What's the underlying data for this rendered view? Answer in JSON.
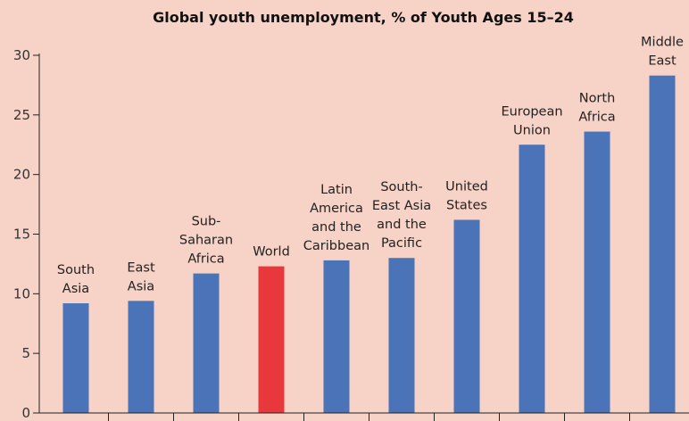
{
  "chart_data": {
    "type": "bar",
    "title": "Global youth unemployment, % of Youth Ages 15–24",
    "xlabel": "",
    "ylabel": "",
    "ylim": [
      0,
      30
    ],
    "yticks": [
      "0",
      "5",
      "10",
      "15",
      "20",
      "25",
      "30"
    ],
    "grid": false,
    "categories": [
      "South Asia",
      "East Asia",
      "Sub-Saharan Africa",
      "World",
      "Latin America and the Caribbean",
      "South-East Asia and the Pacific",
      "United States",
      "European Union",
      "North Africa",
      "Middle East"
    ],
    "label_lines": [
      [
        "South",
        "Asia"
      ],
      [
        "East",
        "Asia"
      ],
      [
        "Sub-",
        "Saharan",
        "Africa"
      ],
      [
        "World"
      ],
      [
        "Latin",
        "America",
        "and the",
        "Caribbean"
      ],
      [
        "South-",
        "East Asia",
        "and the",
        "Pacific"
      ],
      [
        "United",
        "States"
      ],
      [
        "European",
        "Union"
      ],
      [
        "North",
        "Africa"
      ],
      [
        "Middle",
        "East"
      ]
    ],
    "values": [
      9.2,
      9.4,
      11.7,
      12.3,
      12.8,
      13.0,
      16.2,
      22.5,
      23.6,
      28.3
    ],
    "colors": {
      "default": "#4a73b8",
      "highlight": "#e8383b",
      "highlight_category": "World"
    }
  }
}
